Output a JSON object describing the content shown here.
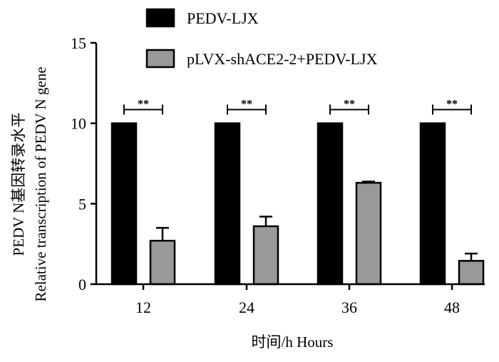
{
  "chart_data": {
    "type": "bar",
    "categories": [
      "12",
      "24",
      "36",
      "48"
    ],
    "series": [
      {
        "name": "PEDV-LJX",
        "values": [
          10,
          10,
          10,
          10
        ],
        "errors": [
          0,
          0,
          0,
          0
        ],
        "color": "#000000"
      },
      {
        "name": "pLVX-shACE2-2+PEDV-LJX",
        "values": [
          2.7,
          3.6,
          6.3,
          1.45
        ],
        "errors": [
          0.8,
          0.6,
          0.08,
          0.45
        ],
        "color": "#999999"
      }
    ],
    "significance": [
      "**",
      "**",
      "**",
      "**"
    ],
    "xlabel": "时间/h Hours",
    "ylabel_line1": "PEDV N基因转录水平",
    "ylabel_line2": "Relative transcription of PEDV N gene",
    "ylim": [
      0,
      15
    ],
    "yticks": [
      0,
      5,
      10,
      15
    ],
    "legend_position": "top",
    "grid": false
  }
}
